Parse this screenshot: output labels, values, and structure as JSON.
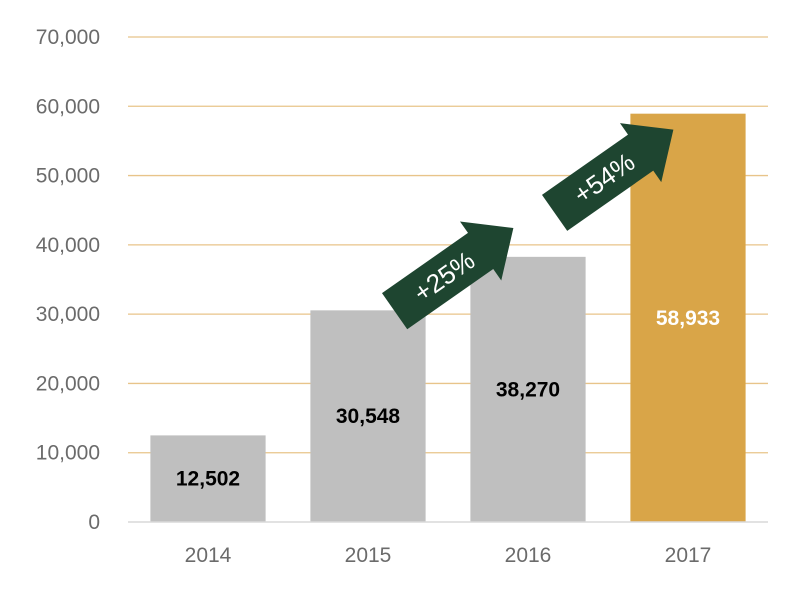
{
  "chart_data": {
    "type": "bar",
    "title": "",
    "xlabel": "",
    "ylabel": "",
    "categories": [
      "2014",
      "2015",
      "2016",
      "2017"
    ],
    "values": [
      12502,
      30548,
      38270,
      58933
    ],
    "value_labels": [
      "12,502",
      "30,548",
      "38,270",
      "58,933"
    ],
    "ylim": [
      0,
      70000
    ],
    "y_ticks": [
      0,
      10000,
      20000,
      30000,
      40000,
      50000,
      60000,
      70000
    ],
    "y_tick_labels": [
      "0",
      "10,000",
      "20,000",
      "30,000",
      "40,000",
      "50,000",
      "60,000",
      "70,000"
    ],
    "grid": true,
    "legend": "none",
    "annotations": [
      {
        "text": "+25%",
        "from": "2015",
        "to": "2016"
      },
      {
        "text": "+54%",
        "from": "2016",
        "to": "2017"
      }
    ],
    "colors": {
      "bar": "#bfbfbf",
      "highlight_bar": "#d9a548",
      "grid": "#e8c48a",
      "axis": "#d9d9d9",
      "arrow": "#1e4530",
      "label_dark": "#000000",
      "label_light": "#ffffff"
    },
    "highlight_index": 3
  }
}
